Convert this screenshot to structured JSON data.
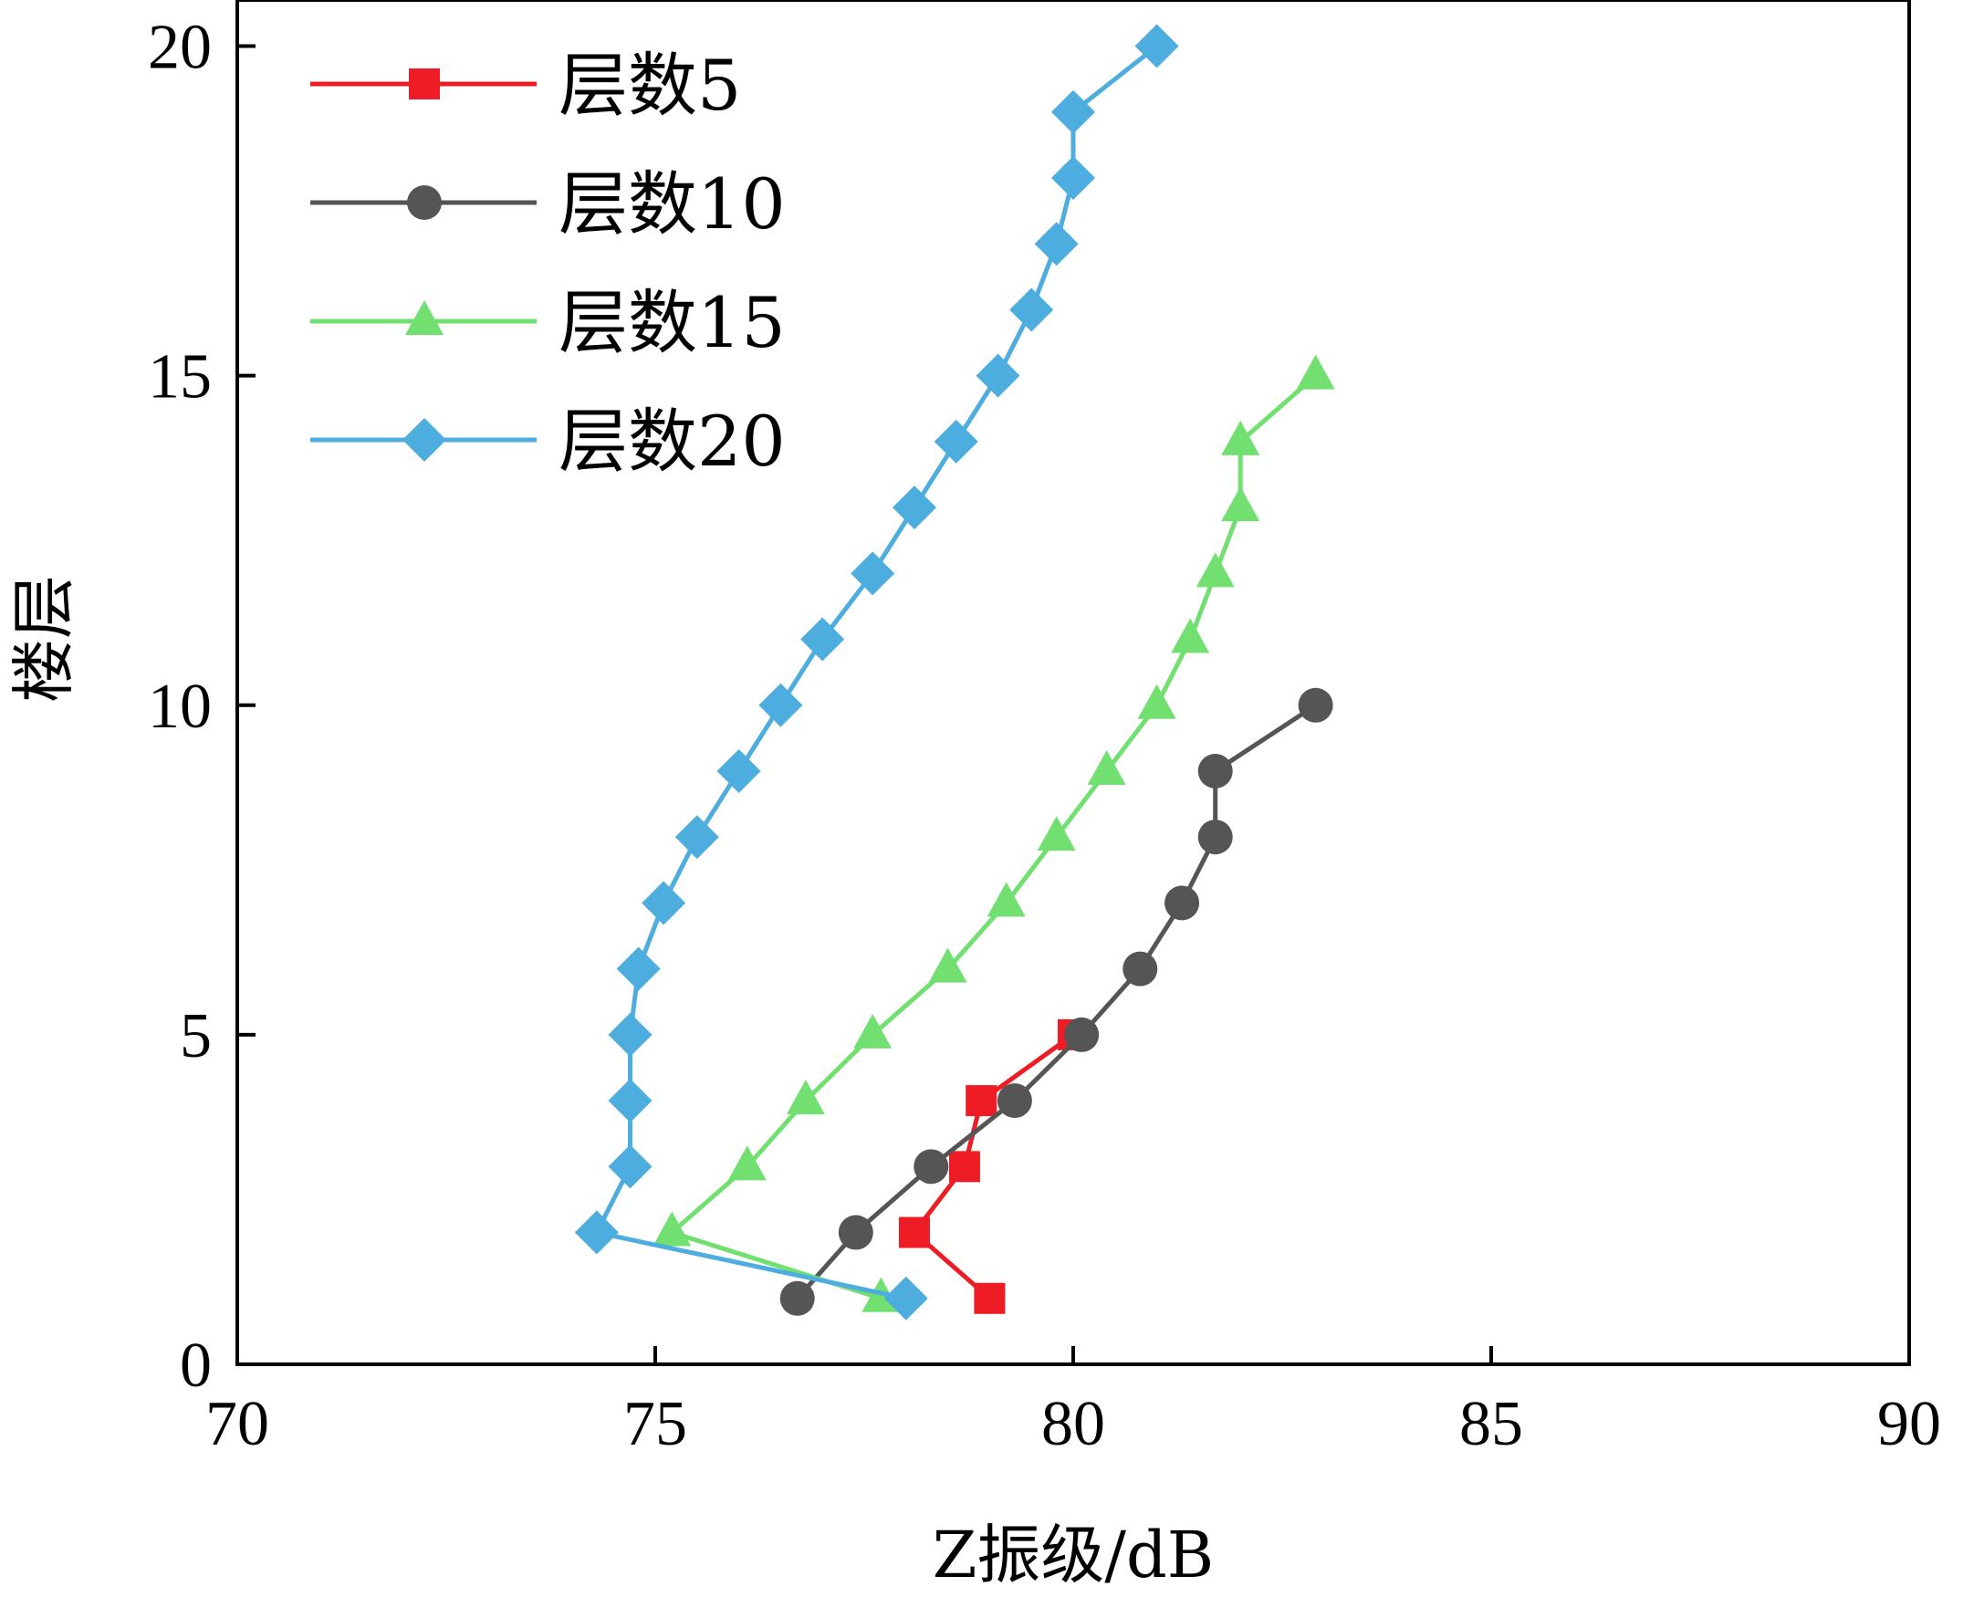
{
  "chart_data": {
    "type": "line",
    "title": "",
    "xlabel": "Z振级/dB",
    "ylabel": "楼层",
    "xlim": [
      70,
      90
    ],
    "ylim": [
      0,
      20.7
    ],
    "x_ticks": [
      70,
      75,
      80,
      85,
      90
    ],
    "y_ticks": [
      0,
      5,
      10,
      15,
      20
    ],
    "grid": false,
    "legend_position": "top-left",
    "series": [
      {
        "name": "层数5",
        "color": "#ee1c25",
        "marker": "square",
        "x": [
          79.0,
          78.1,
          78.7,
          78.9,
          80.0
        ],
        "y": [
          1,
          2,
          3,
          4,
          5
        ]
      },
      {
        "name": "层数10",
        "color": "#555555",
        "marker": "circle",
        "x": [
          76.7,
          77.4,
          78.3,
          79.3,
          80.1,
          80.8,
          81.3,
          81.7,
          81.7,
          82.9
        ],
        "y": [
          1,
          2,
          3,
          4,
          5,
          6,
          7,
          8,
          9,
          10
        ]
      },
      {
        "name": "层数15",
        "color": "#72e070",
        "marker": "triangle",
        "x": [
          77.7,
          75.2,
          76.1,
          76.8,
          77.6,
          78.5,
          79.2,
          79.8,
          80.4,
          81.0,
          81.4,
          81.7,
          82.0,
          82.0,
          82.9
        ],
        "y": [
          1,
          2,
          3,
          4,
          5,
          6,
          7,
          8,
          9,
          10,
          11,
          12,
          13,
          14,
          15
        ]
      },
      {
        "name": "层数20",
        "color": "#4eaddf",
        "marker": "diamond",
        "x": [
          78.0,
          74.3,
          74.7,
          74.7,
          74.7,
          74.8,
          75.1,
          75.5,
          76.0,
          76.5,
          77.0,
          77.6,
          78.1,
          78.6,
          79.1,
          79.5,
          79.8,
          80.0,
          80.0,
          81.0
        ],
        "y": [
          1,
          2,
          3,
          4,
          5,
          6,
          7,
          8,
          9,
          10,
          11,
          12,
          13,
          14,
          15,
          16,
          17,
          18,
          19,
          20
        ]
      }
    ]
  }
}
